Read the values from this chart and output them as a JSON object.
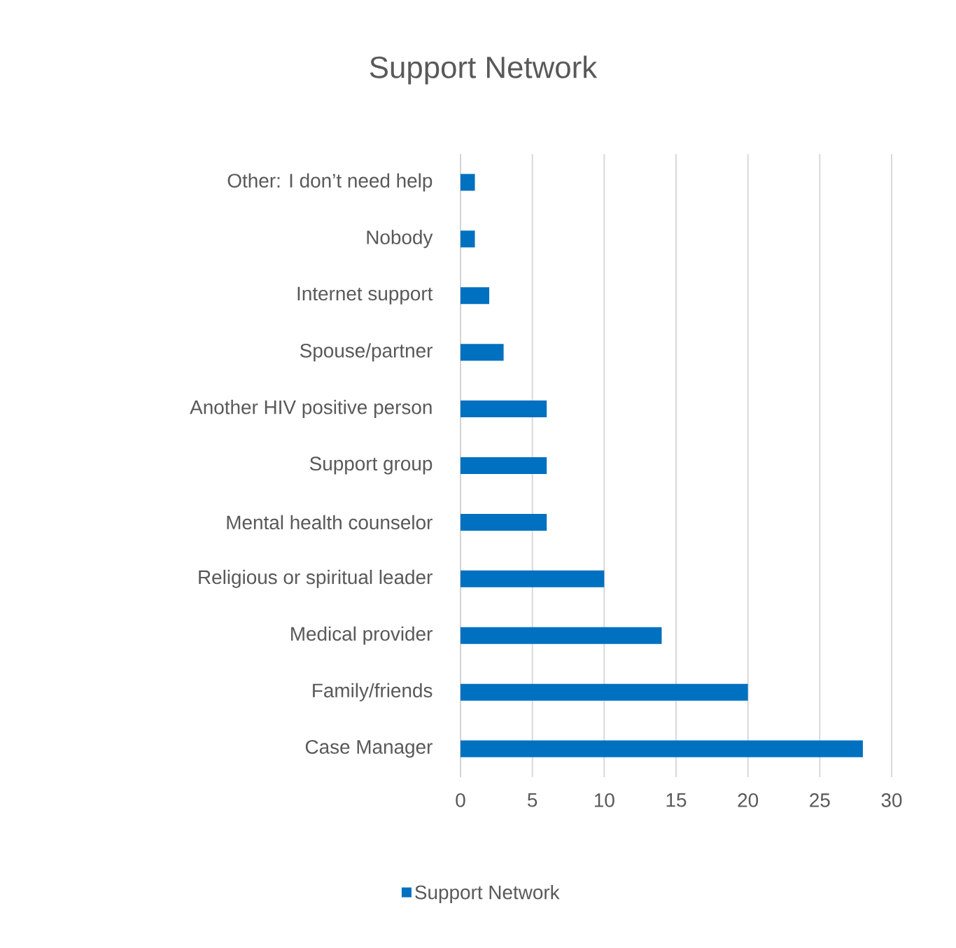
{
  "chart_data": {
    "type": "bar",
    "orientation": "horizontal",
    "title": "Support Network",
    "categories": [
      "Other: I don’t need help",
      "Nobody",
      "Internet support",
      "Spouse/partner",
      "Another HIV positive person",
      "Support group",
      "Mental health counselor",
      "Religious or spiritual leader",
      "Medical provider",
      "Family/friends",
      "Case Manager"
    ],
    "series": [
      {
        "name": "Support Network",
        "color": "#0070c0",
        "values": [
          1,
          1,
          2,
          3,
          6,
          6,
          6,
          10,
          14,
          20,
          28
        ]
      }
    ],
    "xlim": [
      0,
      30
    ],
    "xticks": [
      0,
      5,
      10,
      15,
      20,
      25,
      30
    ],
    "grid": "x",
    "legend": "bottom"
  }
}
